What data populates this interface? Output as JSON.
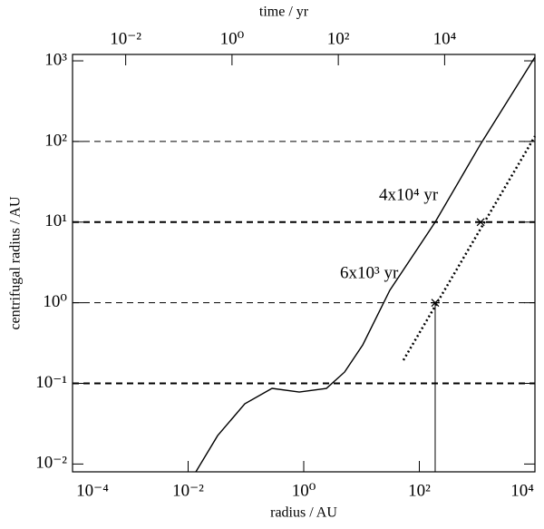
{
  "chart_data": {
    "type": "line",
    "xlabel": "radius / AU",
    "ylabel": "centrifugal radius / AU",
    "x2label": "time / yr",
    "xscale": "log",
    "yscale": "log",
    "xlim": [
      0.0001,
      10000
    ],
    "ylim": [
      0.008,
      1200
    ],
    "x2lim": [
      0.001,
      500000
    ],
    "xticks": [
      {
        "value": 0.0001,
        "label": "10⁻⁴"
      },
      {
        "value": 0.01,
        "label": "10⁻²"
      },
      {
        "value": 1,
        "label": "10⁰"
      },
      {
        "value": 100,
        "label": "10²"
      },
      {
        "value": 10000,
        "label": "10⁴"
      }
    ],
    "x2ticks": [
      {
        "value": 0.01,
        "label": "10⁻²"
      },
      {
        "value": 1,
        "label": "10⁰"
      },
      {
        "value": 100,
        "label": "10²"
      },
      {
        "value": 10000,
        "label": "10⁴"
      }
    ],
    "yticks": [
      {
        "value": 0.01,
        "label": "10⁻²"
      },
      {
        "value": 0.1,
        "label": "10⁻¹"
      },
      {
        "value": 1,
        "label": "10⁰"
      },
      {
        "value": 10,
        "label": "10¹"
      },
      {
        "value": 100,
        "label": "10²"
      },
      {
        "value": 1000,
        "label": "10³"
      }
    ],
    "hlines": [
      0.1,
      1,
      10,
      100
    ],
    "series": [
      {
        "style": "solid",
        "color": "#000000",
        "x": [
          0.0136,
          0.0324,
          0.0955,
          0.283,
          0.836,
          2.47,
          5.08,
          10.5,
          30.9,
          188,
          1150,
          10000
        ],
        "values": [
          0.008,
          0.0225,
          0.0558,
          0.0867,
          0.0782,
          0.0867,
          0.138,
          0.3,
          1.43,
          10,
          93,
          1110
        ]
      },
      {
        "style": "dotted",
        "color": "#000000",
        "x": [
          53,
          10000
        ],
        "values": [
          0.194,
          116
        ]
      }
    ],
    "markers": {
      "x": [
        188,
        1150
      ],
      "values": [
        1,
        10
      ],
      "drop": [
        true,
        false
      ]
    },
    "annotations": [
      "6x10³ yr",
      "4x10⁴ yr"
    ]
  }
}
